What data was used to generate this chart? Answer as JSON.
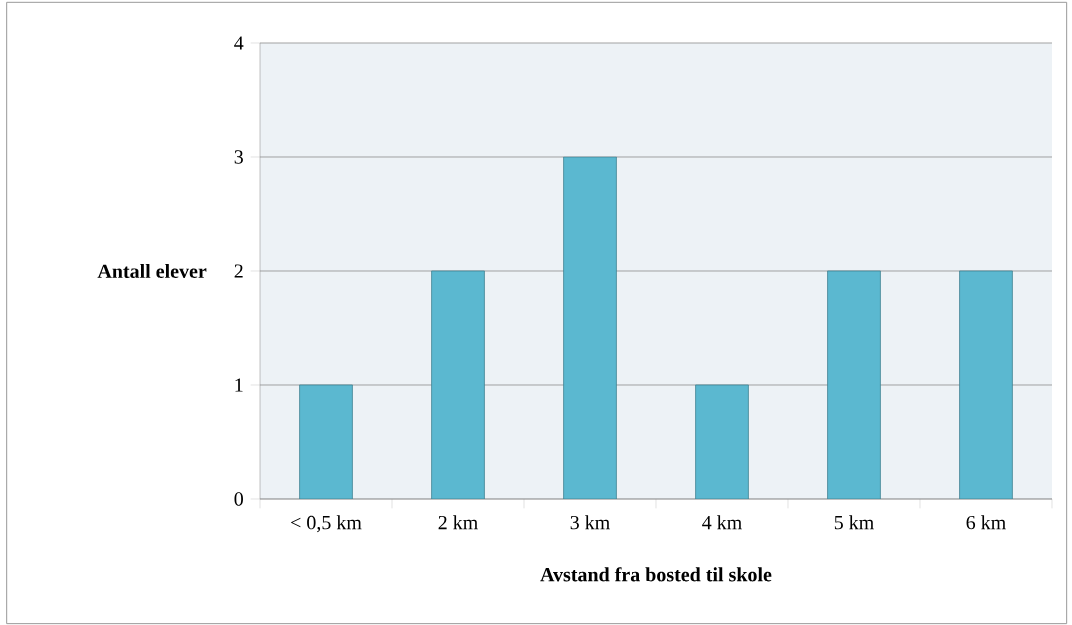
{
  "chart_data": {
    "type": "bar",
    "xlabel": "Avstand fra bosted til skole",
    "ylabel": "Antall elever",
    "categories": [
      "< 0,5 km",
      "2 km",
      "3 km",
      "4 km",
      "5 km",
      "6 km"
    ],
    "values": [
      1,
      2,
      3,
      1,
      2,
      2
    ],
    "color": "#5bb8d0",
    "ylim": [
      0,
      4
    ],
    "yticks": [
      0,
      1,
      2,
      3,
      4
    ],
    "grid": "y"
  }
}
